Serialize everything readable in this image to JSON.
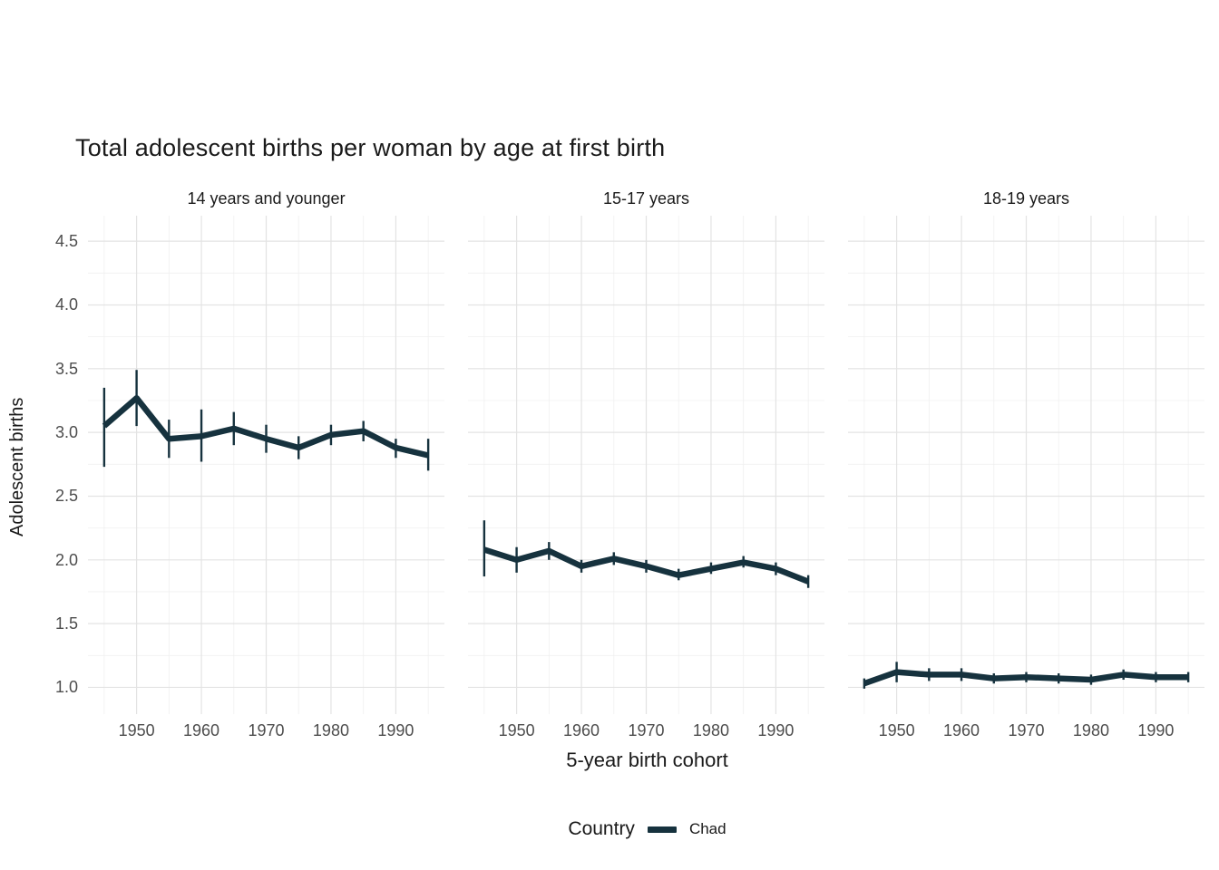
{
  "chart_data": {
    "type": "line",
    "title": "Total adolescent births per woman by age at first birth",
    "xlabel": "5-year birth cohort",
    "ylabel": "Adolescent births",
    "x": [
      1945,
      1950,
      1955,
      1960,
      1965,
      1970,
      1975,
      1980,
      1985,
      1990,
      1995
    ],
    "xticks": [
      1950,
      1960,
      1970,
      1980,
      1990
    ],
    "xtick_labels": [
      "1950",
      "1960",
      "1970",
      "1980",
      "1990"
    ],
    "x_minor_ticks": [
      1945,
      1955,
      1965,
      1975,
      1985,
      1995
    ],
    "xlim": [
      1942.5,
      1997.5
    ],
    "ytick_values": [
      1.0,
      1.5,
      2.0,
      2.5,
      3.0,
      3.5,
      4.0,
      4.5
    ],
    "ytick_labels": [
      "1.0",
      "1.5",
      "2.0",
      "2.5",
      "3.0",
      "3.5",
      "4.0",
      "4.5"
    ],
    "y_minor_ticks": [
      1.25,
      1.75,
      2.25,
      2.75,
      3.25,
      3.75,
      4.25
    ],
    "ylim": [
      0.79,
      4.7
    ],
    "grid": "on",
    "line_color": "#16323e",
    "grid_major_color": "#e3e3e3",
    "grid_minor_color": "#f0f0f0",
    "legend": {
      "label": "Country",
      "series_name": "Chad",
      "position": "bottom"
    },
    "panels": [
      {
        "label": "14 years and younger",
        "values": [
          3.05,
          3.27,
          2.95,
          2.97,
          3.03,
          2.95,
          2.88,
          2.98,
          3.01,
          2.88,
          2.82
        ],
        "lower": [
          2.73,
          3.05,
          2.8,
          2.77,
          2.9,
          2.84,
          2.79,
          2.9,
          2.93,
          2.8,
          2.7
        ],
        "upper": [
          3.35,
          3.49,
          3.1,
          3.18,
          3.16,
          3.06,
          2.97,
          3.06,
          3.09,
          2.95,
          2.95
        ]
      },
      {
        "label": "15-17 years",
        "values": [
          2.08,
          2.0,
          2.07,
          1.95,
          2.01,
          1.95,
          1.88,
          1.93,
          1.98,
          1.93,
          1.83
        ],
        "lower": [
          1.87,
          1.9,
          2.0,
          1.9,
          1.96,
          1.9,
          1.84,
          1.89,
          1.94,
          1.88,
          1.78
        ],
        "upper": [
          2.31,
          2.1,
          2.14,
          2.0,
          2.06,
          2.0,
          1.93,
          1.98,
          2.03,
          1.98,
          1.88
        ]
      },
      {
        "label": "18-19 years",
        "values": [
          1.03,
          1.12,
          1.1,
          1.1,
          1.07,
          1.08,
          1.07,
          1.06,
          1.1,
          1.08,
          1.08
        ],
        "lower": [
          0.99,
          1.04,
          1.05,
          1.05,
          1.03,
          1.04,
          1.03,
          1.02,
          1.06,
          1.04,
          1.04
        ],
        "upper": [
          1.07,
          1.2,
          1.15,
          1.15,
          1.11,
          1.12,
          1.11,
          1.1,
          1.14,
          1.12,
          1.12
        ]
      }
    ]
  }
}
